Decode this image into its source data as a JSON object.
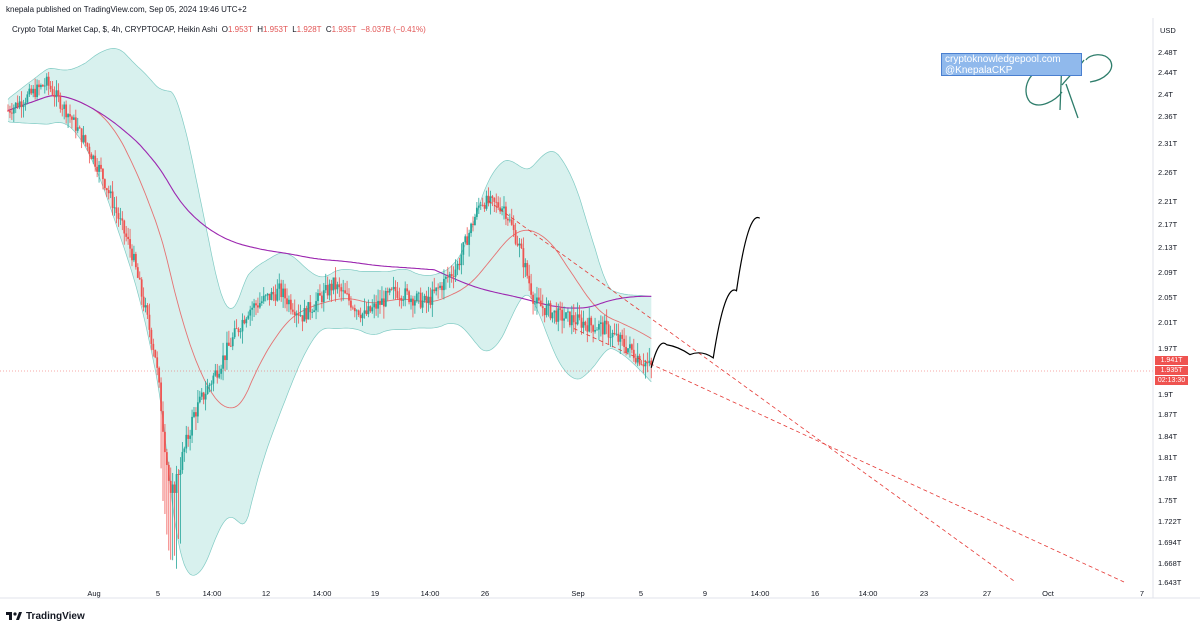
{
  "header": {
    "publisher": "knepala published on TradingView.com, Sep 05, 2024 19:46 UTC+2"
  },
  "legend": {
    "symbol": "Crypto Total Market Cap, $, 4h, CRYPTOCAP, Heikin Ashi",
    "o_label": "O",
    "o_value": "1.953T",
    "h_label": "H",
    "h_value": "1.953T",
    "l_label": "L",
    "l_value": "1.928T",
    "c_label": "C",
    "c_value": "1.935T",
    "change": "−8.037B (−0.41%)"
  },
  "watermark": {
    "line1": "cryptoknowledgepool.com",
    "line2": "@KnepalaCKP",
    "signature": "CKP"
  },
  "price_axis": {
    "currency": "USD",
    "ticks": [
      "2.48T",
      "2.44T",
      "2.4T",
      "2.36T",
      "2.31T",
      "2.26T",
      "2.21T",
      "2.17T",
      "2.13T",
      "2.09T",
      "2.05T",
      "2.01T",
      "1.97T",
      "1.9T",
      "1.87T",
      "1.84T",
      "1.81T",
      "1.78T",
      "1.75T",
      "1.722T",
      "1.694T",
      "1.668T",
      "1.643T"
    ],
    "tag_price": "1.941T",
    "tag_close": "1.935T",
    "tag_countdown": "02:13:30"
  },
  "time_axis": {
    "ticks": [
      "Aug",
      "5",
      "14:00",
      "12",
      "14:00",
      "19",
      "14:00",
      "26",
      "Sep",
      "5",
      "9",
      "14:00",
      "16",
      "14:00",
      "23",
      "27",
      "Oct",
      "7"
    ]
  },
  "footer": {
    "brand": "TradingView"
  },
  "colors": {
    "up": "#26a69a",
    "down": "#ef5350",
    "band": "#d8f1ee",
    "band_line": "#80cbc4",
    "ma200": "#9c27b0",
    "ma_mid": "#e57373",
    "projection": "#000000",
    "trendline": "#e53935"
  },
  "chart_data": {
    "type": "candlestick",
    "title": "Crypto Total Market Cap, $, 4h, CRYPTOCAP, Heikin Ashi",
    "ylabel": "USD",
    "ylim": [
      1.643,
      2.48
    ],
    "price_path": [
      [
        0,
        2.37
      ],
      [
        5,
        2.42
      ],
      [
        8,
        2.36
      ],
      [
        12,
        2.26
      ],
      [
        16,
        2.12
      ],
      [
        19,
        1.96
      ],
      [
        21,
        1.75
      ],
      [
        24,
        1.87
      ],
      [
        28,
        1.96
      ],
      [
        31,
        2.03
      ],
      [
        35,
        2.06
      ],
      [
        38,
        2.02
      ],
      [
        42,
        2.07
      ],
      [
        46,
        2.02
      ],
      [
        50,
        2.06
      ],
      [
        54,
        2.04
      ],
      [
        58,
        2.1
      ],
      [
        61,
        2.21
      ],
      [
        64,
        2.2
      ],
      [
        66,
        2.13
      ],
      [
        68,
        2.04
      ],
      [
        71,
        2.02
      ],
      [
        74,
        2.01
      ],
      [
        77,
        2.0
      ],
      [
        80,
        1.97
      ],
      [
        83,
        1.94
      ]
    ],
    "last_close": 1.935,
    "projection": [
      [
        83,
        1.94
      ],
      [
        85,
        1.975
      ],
      [
        88,
        1.96
      ],
      [
        91,
        1.955
      ],
      [
        94,
        2.06
      ],
      [
        97,
        2.18
      ]
    ],
    "trendlines": [
      {
        "from": [
          62,
          2.21
        ],
        "to": [
          130,
          1.643
        ]
      },
      {
        "from": [
          73,
          2.0
        ],
        "to": [
          144,
          1.643
        ]
      }
    ]
  }
}
